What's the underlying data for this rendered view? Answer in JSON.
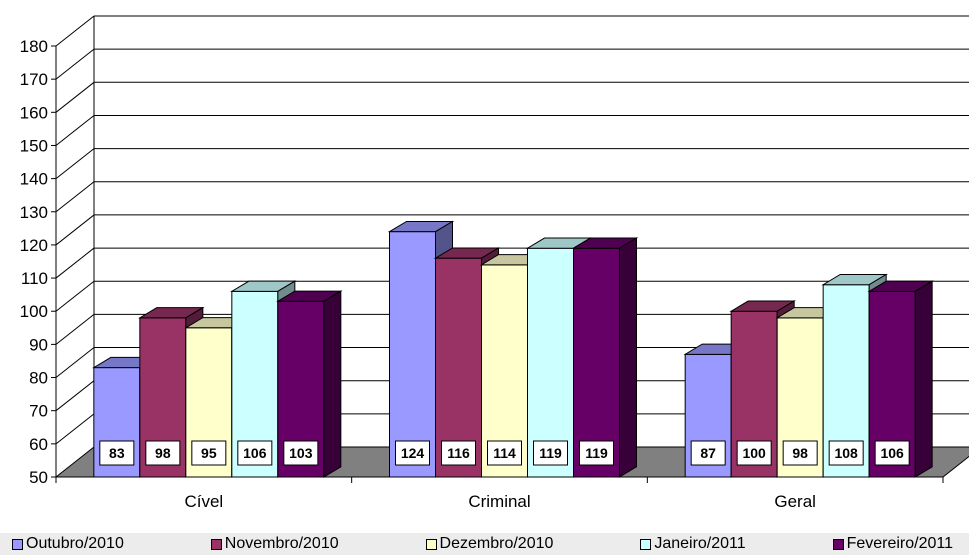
{
  "chart_data": {
    "type": "bar",
    "style": "3d-clustered-column",
    "title": "",
    "xlabel": "",
    "ylabel": "",
    "categories": [
      "Cível",
      "Criminal",
      "Geral"
    ],
    "ylim": [
      50,
      180
    ],
    "yticks": [
      50,
      60,
      70,
      80,
      90,
      100,
      110,
      120,
      130,
      140,
      150,
      160,
      170,
      180
    ],
    "grid": true,
    "legend_position": "bottom",
    "data_labels": true,
    "series": [
      {
        "name": "Outubro/2010",
        "color": "#9999ff",
        "values": [
          83,
          124,
          87
        ]
      },
      {
        "name": "Novembro/2010",
        "color": "#993366",
        "values": [
          98,
          116,
          100
        ]
      },
      {
        "name": "Dezembro/2010",
        "color": "#ffffcc",
        "values": [
          95,
          114,
          98
        ]
      },
      {
        "name": "Janeiro/2011",
        "color": "#ccffff",
        "values": [
          106,
          119,
          108
        ]
      },
      {
        "name": "Fevereiro/2011",
        "color": "#660066",
        "values": [
          103,
          119,
          106
        ]
      }
    ],
    "floor_color": "#808080"
  }
}
